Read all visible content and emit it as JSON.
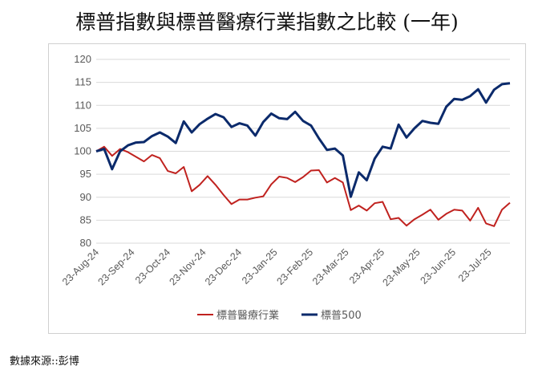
{
  "chart_data": {
    "type": "line",
    "title": "標普指數與標普醫療行業指數之比較 (一年)",
    "xlabel": "",
    "ylabel": "",
    "ylim": [
      80,
      120
    ],
    "yticks": [
      80,
      85,
      90,
      95,
      100,
      105,
      110,
      115,
      120
    ],
    "xtick_labels": [
      "23-Aug-24",
      "23-Sep-24",
      "23-Oct-24",
      "23-Nov-24",
      "23-Dec-24",
      "23-Jan-25",
      "23-Feb-25",
      "23-Mar-25",
      "23-Apr-25",
      "23-May-25",
      "23-Jun-25",
      "23-Jul-25"
    ],
    "legend_position": "bottom",
    "grid": "horizontal",
    "series": [
      {
        "name": "標普醫療行業",
        "color": "#C0221F",
        "values": [
          100,
          101,
          99,
          100.5,
          99.8,
          98.8,
          97.8,
          99.2,
          98.5,
          95.7,
          95.2,
          96.6,
          91.3,
          92.7,
          94.6,
          92.7,
          90.5,
          88.5,
          89.5,
          89.5,
          89.9,
          90.2,
          92.8,
          94.5,
          94.2,
          93.3,
          94.4,
          95.8,
          95.9,
          93.2,
          94.2,
          93.2,
          87.2,
          88.2,
          87.1,
          88.7,
          89,
          85.2,
          85.5,
          83.8,
          85.2,
          86.2,
          87.3,
          85.1,
          86.4,
          87.3,
          87.1,
          84.9,
          87.7,
          84.3,
          83.7,
          87.3,
          88.8
        ]
      },
      {
        "name": "標普500",
        "color": "#0B2A6B",
        "values": [
          100,
          100.5,
          96.1,
          100,
          101.3,
          101.9,
          102,
          103.3,
          104.1,
          103.2,
          101.8,
          106.5,
          104.1,
          105.9,
          107.1,
          108.1,
          107.4,
          105.3,
          106.1,
          105.6,
          103.4,
          106.4,
          108.2,
          107.2,
          107,
          108.6,
          106.6,
          105.6,
          102.8,
          100.3,
          100.6,
          99.1,
          90.1,
          95.4,
          93.7,
          98.4,
          101,
          100.6,
          105.8,
          103,
          105,
          106.6,
          106.2,
          106,
          109.7,
          111.4,
          111.2,
          112,
          113.5,
          110.6,
          113.4,
          114.6,
          114.8
        ]
      }
    ]
  },
  "footer": {
    "source": "數據來源::彭博"
  }
}
